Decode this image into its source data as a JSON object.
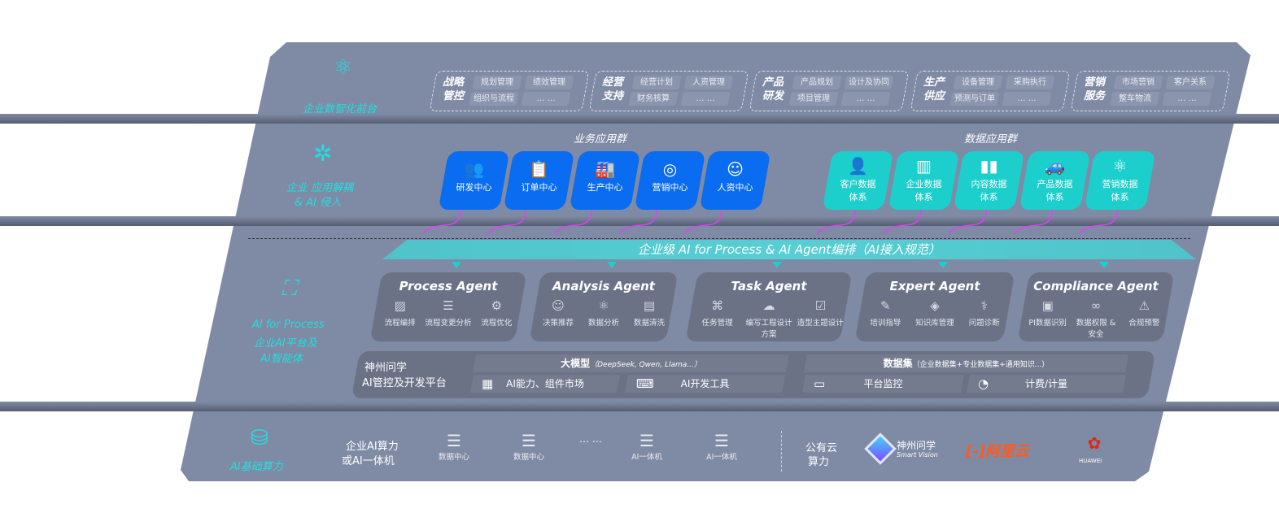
{
  "tiers": {
    "front": {
      "label": "企业数智化前台",
      "icon": "brain-icon",
      "groups": [
        {
          "title": "战略管控",
          "items": [
            "规划管理",
            "绩效管理",
            "组织与流程",
            "… …"
          ]
        },
        {
          "title": "经营支持",
          "items": [
            "经营计划",
            "人资管理",
            "财务核算",
            "… …"
          ]
        },
        {
          "title": "产品研发",
          "items": [
            "产品规划",
            "设计及协同",
            "项目管理",
            "… …"
          ]
        },
        {
          "title": "生产供应",
          "items": [
            "设备管理",
            "采购执行",
            "预测与订单",
            "… …"
          ]
        },
        {
          "title": "营销服务",
          "items": [
            "市场营销",
            "客户关系",
            "整车物流",
            "… …"
          ]
        }
      ]
    },
    "apps": {
      "label_line1": "企业 应用解耦",
      "label_line2": "& AI 侵入",
      "icon": "molecule-icon",
      "business_title": "业务应用群",
      "business": [
        {
          "label": "研发中心",
          "icon": "team-icon"
        },
        {
          "label": "订单中心",
          "icon": "clipboard-icon"
        },
        {
          "label": "生产中心",
          "icon": "factory-icon"
        },
        {
          "label": "营销中心",
          "icon": "target-icon"
        },
        {
          "label": "人资中心",
          "icon": "people-icon"
        }
      ],
      "data_title": "数据应用群",
      "data": [
        {
          "label1": "客户数据",
          "label2": "体系",
          "icon": "user-icon"
        },
        {
          "label1": "企业数据",
          "label2": "体系",
          "icon": "building-icon"
        },
        {
          "label1": "内容数据",
          "label2": "体系",
          "icon": "books-icon"
        },
        {
          "label1": "产品数据",
          "label2": "体系",
          "icon": "car-icon"
        },
        {
          "label1": "营销数据",
          "label2": "体系",
          "icon": "atom-icon"
        }
      ]
    },
    "ai": {
      "label1": "AI for Process",
      "label2": "企业AI平台及",
      "label3": "AI智能体",
      "icon": "face-scan-icon",
      "bar": "企业级 AI for Process & AI Agent编排（AI接入规范）",
      "agents": [
        {
          "title": "Process Agent",
          "items": [
            {
              "label": "流程编排",
              "icon": "chart-window-icon"
            },
            {
              "label": "流程变更分析",
              "icon": "list-icon"
            },
            {
              "label": "流程优化",
              "icon": "optimize-icon"
            }
          ]
        },
        {
          "title": "Analysis Agent",
          "items": [
            {
              "label": "决策推荐",
              "icon": "head-icon"
            },
            {
              "label": "数据分析",
              "icon": "atom-icon"
            },
            {
              "label": "数据清洗",
              "icon": "doc-clean-icon"
            }
          ]
        },
        {
          "title": "Task Agent",
          "items": [
            {
              "label": "任务管理",
              "icon": "network-icon"
            },
            {
              "label": "编写工程设计方案",
              "icon": "cloud-icon"
            },
            {
              "label": "造型主题设计",
              "icon": "checklist-icon"
            }
          ]
        },
        {
          "title": "Expert Agent",
          "items": [
            {
              "label": "培训指导",
              "icon": "tools-icon"
            },
            {
              "label": "知识库管理",
              "icon": "layers-icon"
            },
            {
              "label": "问题诊断",
              "icon": "diagnose-icon"
            }
          ]
        },
        {
          "title": "Compliance Agent",
          "items": [
            {
              "label": "PI数据识别",
              "icon": "id-card-icon"
            },
            {
              "label": "数据权限 & 安全",
              "icon": "link-icon"
            },
            {
              "label": "合规预警",
              "icon": "alert-icon"
            }
          ]
        }
      ],
      "platform": {
        "title1": "神州问学",
        "title2": "AI管控及开发平台",
        "model": "大模型",
        "model_sub": "（DeepSeek, Qwen, Llama...）",
        "dataset": "数据集",
        "dataset_sub": "（企业数据集+专业数据集+通用知识...）",
        "cells": [
          {
            "label": "AI能力、组件市场",
            "icon": "market-icon"
          },
          {
            "label": "AI开发工具",
            "icon": "dev-tool-icon"
          },
          {
            "label": "平台监控",
            "icon": "monitor-icon"
          },
          {
            "label": "计费/计量",
            "icon": "gauge-icon"
          }
        ]
      }
    },
    "compute": {
      "label": "AI基础算力",
      "icon": "database-icon",
      "private_label1": "企业AI算力",
      "private_label2": "或AI一体机",
      "servers": [
        "数据中心",
        "数据中心",
        "AI一体机",
        "AI一体机"
      ],
      "ellipsis": "… …",
      "public_label1": "公有云",
      "public_label2": "算力",
      "vendors": [
        {
          "name": "神州问学",
          "sub": "Smart Vision"
        },
        {
          "name": "阿里云",
          "color": "#ff5a1f"
        },
        {
          "name": "HUAWEI",
          "color": "#e0261b"
        }
      ]
    }
  },
  "colors": {
    "panel": "#7f8aa4",
    "blue": "#0a6cf0",
    "teal": "#1ccfcc",
    "accent_text": "#1fe0e0",
    "arrow": "#e040fb"
  }
}
